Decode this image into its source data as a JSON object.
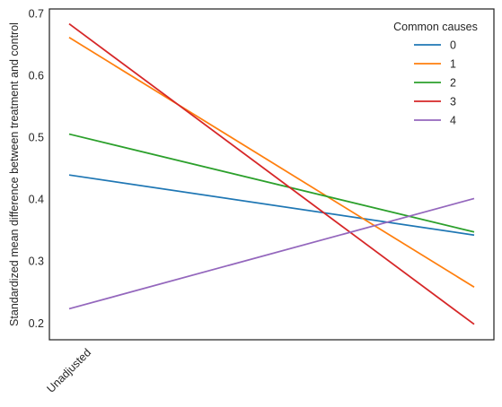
{
  "chart_data": {
    "type": "line",
    "title": "",
    "xlabel": "",
    "ylabel": "Standardized mean difference between treatment and control",
    "categories": [
      "Unadjusted",
      ""
    ],
    "xticks": [
      "Unadjusted"
    ],
    "ylim": [
      0.173,
      0.707
    ],
    "yticks": [
      0.2,
      0.3,
      0.4,
      0.5,
      0.6,
      0.7
    ],
    "ytick_labels": [
      "0.2",
      "0.3",
      "0.4",
      "0.5",
      "0.6",
      "0.7"
    ],
    "grid": false,
    "legend": {
      "title": "Common causes",
      "position": "top-right"
    },
    "series": [
      {
        "name": "0",
        "color": "#1f77b4",
        "values": [
          0.439,
          0.342
        ]
      },
      {
        "name": "1",
        "color": "#ff7f0e",
        "values": [
          0.661,
          0.258
        ]
      },
      {
        "name": "2",
        "color": "#2ca02c",
        "values": [
          0.505,
          0.347
        ]
      },
      {
        "name": "3",
        "color": "#d62728",
        "values": [
          0.683,
          0.198
        ]
      },
      {
        "name": "4",
        "color": "#9467bd",
        "values": [
          0.223,
          0.401
        ]
      }
    ]
  }
}
